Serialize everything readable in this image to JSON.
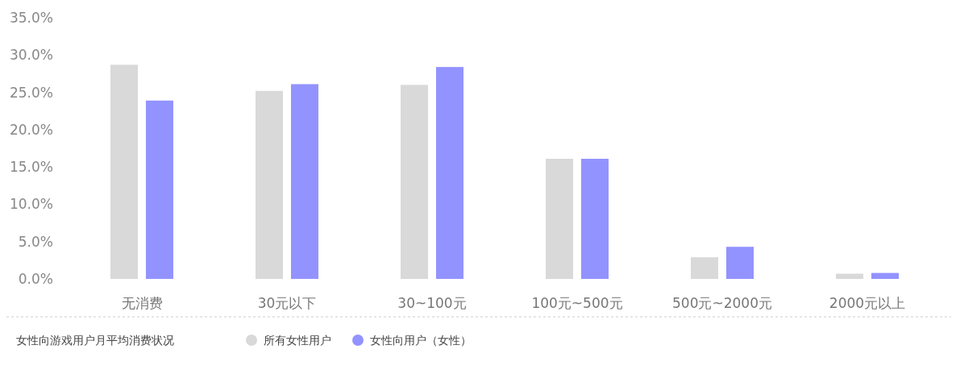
{
  "chart_data": {
    "type": "bar",
    "title": "女性向游戏用户月平均消费状况",
    "categories": [
      "无消费",
      "30元以下",
      "30~100元",
      "100元~500元",
      "500元~2000元",
      "2000元以上"
    ],
    "series": [
      {
        "name": "所有女性用户",
        "color": "#d9d9d9",
        "values": [
          28.7,
          25.2,
          26.0,
          16.1,
          2.9,
          0.7
        ]
      },
      {
        "name": "女性向用户（女性）",
        "color": "#9393ff",
        "values": [
          23.9,
          26.1,
          28.4,
          16.1,
          4.3,
          0.8
        ]
      }
    ],
    "ylim": [
      0,
      35
    ],
    "yticks": [
      {
        "value": 0,
        "label": "0.0%"
      },
      {
        "value": 5,
        "label": "5.0%"
      },
      {
        "value": 10,
        "label": "10.0%"
      },
      {
        "value": 15,
        "label": "15.0%"
      },
      {
        "value": 20,
        "label": "20.0%"
      },
      {
        "value": 25,
        "label": "25.0%"
      },
      {
        "value": 30,
        "label": "30.0%"
      },
      {
        "value": 35,
        "label": "35.0%"
      }
    ],
    "grid": false,
    "legend": "bottom"
  }
}
